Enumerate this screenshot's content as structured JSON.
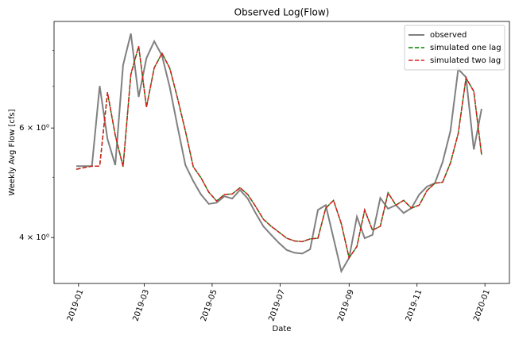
{
  "chart_data": {
    "type": "line",
    "title": "Observed Log(Flow)",
    "xlabel": "Date",
    "ylabel": "Weekly Avg Flow [cfs]",
    "x": [
      "2018-12-30",
      "2019-01-06",
      "2019-01-13",
      "2019-01-20",
      "2019-01-27",
      "2019-02-03",
      "2019-02-10",
      "2019-02-17",
      "2019-02-24",
      "2019-03-03",
      "2019-03-10",
      "2019-03-17",
      "2019-03-24",
      "2019-03-31",
      "2019-04-07",
      "2019-04-14",
      "2019-04-21",
      "2019-04-28",
      "2019-05-05",
      "2019-05-12",
      "2019-05-19",
      "2019-05-26",
      "2019-06-02",
      "2019-06-09",
      "2019-06-16",
      "2019-06-23",
      "2019-06-30",
      "2019-07-07",
      "2019-07-14",
      "2019-07-21",
      "2019-07-28",
      "2019-08-04",
      "2019-08-11",
      "2019-08-18",
      "2019-08-25",
      "2019-09-01",
      "2019-09-08",
      "2019-09-15",
      "2019-09-22",
      "2019-09-29",
      "2019-10-06",
      "2019-10-13",
      "2019-10-20",
      "2019-10-27",
      "2019-11-03",
      "2019-11-10",
      "2019-11-17",
      "2019-11-24",
      "2019-12-01",
      "2019-12-08",
      "2019-12-15",
      "2019-12-22",
      "2019-12-29"
    ],
    "series": [
      {
        "name": "observed",
        "color": "#808080",
        "dash": "solid",
        "width": 2,
        "values": [
          5.21,
          5.21,
          5.21,
          7.01,
          5.76,
          5.23,
          7.57,
          8.51,
          6.73,
          7.77,
          8.27,
          7.84,
          6.97,
          6.02,
          5.23,
          4.93,
          4.69,
          4.53,
          4.55,
          4.66,
          4.62,
          4.77,
          4.62,
          4.38,
          4.17,
          4.04,
          3.92,
          3.82,
          3.78,
          3.77,
          3.83,
          4.43,
          4.51,
          3.99,
          3.53,
          3.71,
          4.32,
          3.99,
          4.04,
          4.63,
          4.45,
          4.51,
          4.38,
          4.46,
          4.69,
          4.83,
          4.89,
          5.29,
          5.93,
          7.46,
          7.24,
          5.54,
          6.44
        ]
      },
      {
        "name": "simulated one lag",
        "color": "#008000",
        "dash": "dashed",
        "width": 1.5,
        "values": [
          5.15,
          5.18,
          5.21,
          5.21,
          6.83,
          5.84,
          5.2,
          7.31,
          8.12,
          6.48,
          7.5,
          7.91,
          7.48,
          6.69,
          5.93,
          5.2,
          4.99,
          4.73,
          4.58,
          4.69,
          4.7,
          4.81,
          4.69,
          4.49,
          4.28,
          4.17,
          4.08,
          3.99,
          3.95,
          3.94,
          3.98,
          3.99,
          4.46,
          4.59,
          4.21,
          3.71,
          3.87,
          4.43,
          4.11,
          4.17,
          4.72,
          4.51,
          4.59,
          4.46,
          4.51,
          4.76,
          4.89,
          4.91,
          5.27,
          5.88,
          7.22,
          6.87,
          5.43
        ]
      },
      {
        "name": "simulated two lag",
        "color": "#d62020",
        "dash": "dashed",
        "width": 1.5,
        "values": [
          5.15,
          5.18,
          5.21,
          5.21,
          6.85,
          5.84,
          5.2,
          7.33,
          8.12,
          6.48,
          7.5,
          7.91,
          7.48,
          6.69,
          5.93,
          5.2,
          4.99,
          4.73,
          4.58,
          4.69,
          4.7,
          4.81,
          4.69,
          4.49,
          4.28,
          4.17,
          4.08,
          3.99,
          3.95,
          3.94,
          3.98,
          3.99,
          4.46,
          4.59,
          4.21,
          3.71,
          3.87,
          4.43,
          4.11,
          4.17,
          4.72,
          4.51,
          4.59,
          4.46,
          4.51,
          4.76,
          4.89,
          4.91,
          5.27,
          5.88,
          7.22,
          6.87,
          5.43
        ]
      }
    ],
    "xlim": [
      "2018-12-10",
      "2020-01-23"
    ],
    "xticks": [
      "2019-01",
      "2019-03",
      "2019-05",
      "2019-07",
      "2019-09",
      "2019-11",
      "2020-01"
    ],
    "ylim": [
      3.375,
      8.9
    ],
    "yscale": "log",
    "yticks": [
      {
        "value": 4,
        "label": "4 × 10⁰"
      },
      {
        "value": 6,
        "label": "6 × 10⁰"
      }
    ],
    "yminorticks": [
      5,
      7,
      8
    ],
    "legend": "upper right"
  }
}
